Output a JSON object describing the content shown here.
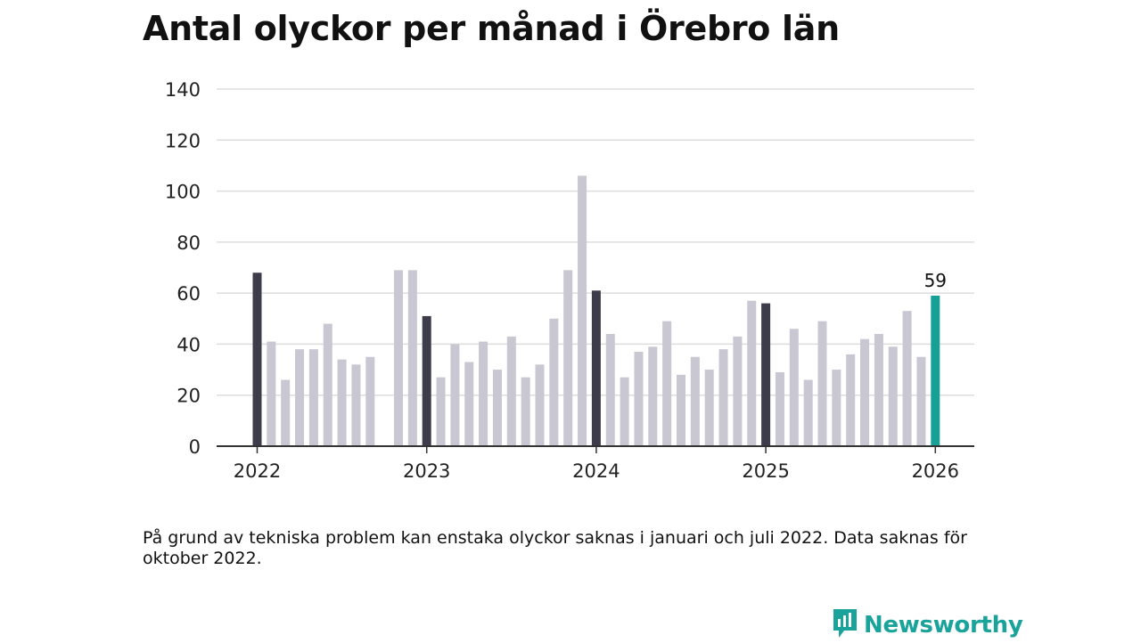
{
  "chart_data": {
    "type": "bar",
    "title": "Antal olyckor per månad i Örebro län",
    "xlabel": "",
    "ylabel": "",
    "ylim": [
      0,
      140
    ],
    "yticks": [
      0,
      20,
      40,
      60,
      80,
      100,
      120,
      140
    ],
    "year_ticks": [
      "2022",
      "2023",
      "2024",
      "2025",
      "2026"
    ],
    "months": [
      {
        "label": "2022-01",
        "value": 68
      },
      {
        "label": "2022-02",
        "value": 41
      },
      {
        "label": "2022-03",
        "value": 26
      },
      {
        "label": "2022-04",
        "value": 38
      },
      {
        "label": "2022-05",
        "value": 38
      },
      {
        "label": "2022-06",
        "value": 48
      },
      {
        "label": "2022-07",
        "value": 34
      },
      {
        "label": "2022-08",
        "value": 32
      },
      {
        "label": "2022-09",
        "value": 35
      },
      {
        "label": "2022-10",
        "value": null
      },
      {
        "label": "2022-11",
        "value": 69
      },
      {
        "label": "2022-12",
        "value": 69
      },
      {
        "label": "2023-01",
        "value": 51
      },
      {
        "label": "2023-02",
        "value": 27
      },
      {
        "label": "2023-03",
        "value": 40
      },
      {
        "label": "2023-04",
        "value": 33
      },
      {
        "label": "2023-05",
        "value": 41
      },
      {
        "label": "2023-06",
        "value": 30
      },
      {
        "label": "2023-07",
        "value": 43
      },
      {
        "label": "2023-08",
        "value": 27
      },
      {
        "label": "2023-09",
        "value": 32
      },
      {
        "label": "2023-10",
        "value": 50
      },
      {
        "label": "2023-11",
        "value": 69
      },
      {
        "label": "2023-12",
        "value": 106
      },
      {
        "label": "2024-01",
        "value": 61
      },
      {
        "label": "2024-02",
        "value": 44
      },
      {
        "label": "2024-03",
        "value": 27
      },
      {
        "label": "2024-04",
        "value": 37
      },
      {
        "label": "2024-05",
        "value": 39
      },
      {
        "label": "2024-06",
        "value": 49
      },
      {
        "label": "2024-07",
        "value": 28
      },
      {
        "label": "2024-08",
        "value": 35
      },
      {
        "label": "2024-09",
        "value": 30
      },
      {
        "label": "2024-10",
        "value": 38
      },
      {
        "label": "2024-11",
        "value": 43
      },
      {
        "label": "2024-12",
        "value": 57
      },
      {
        "label": "2025-01",
        "value": 56
      },
      {
        "label": "2025-02",
        "value": 29
      },
      {
        "label": "2025-03",
        "value": 46
      },
      {
        "label": "2025-04",
        "value": 26
      },
      {
        "label": "2025-05",
        "value": 49
      },
      {
        "label": "2025-06",
        "value": 30
      },
      {
        "label": "2025-07",
        "value": 36
      },
      {
        "label": "2025-08",
        "value": 42
      },
      {
        "label": "2025-09",
        "value": 44
      },
      {
        "label": "2025-10",
        "value": 39
      },
      {
        "label": "2025-11",
        "value": 53
      },
      {
        "label": "2025-12",
        "value": 35
      },
      {
        "label": "2026-01",
        "value": 59
      }
    ],
    "highlight_label": "59",
    "colors": {
      "january": "#3d3c4a",
      "other": "#c8c7d2",
      "latest": "#17a096",
      "grid": "#dddddd",
      "axis": "#333333"
    }
  },
  "note": "På grund av tekniska problem kan enstaka olyckor saknas i januari och juli 2022. Data saknas för oktober 2022.",
  "brand": {
    "name": "Newsworthy",
    "icon": "newsworthy-logo-icon",
    "color": "#19a39a"
  }
}
